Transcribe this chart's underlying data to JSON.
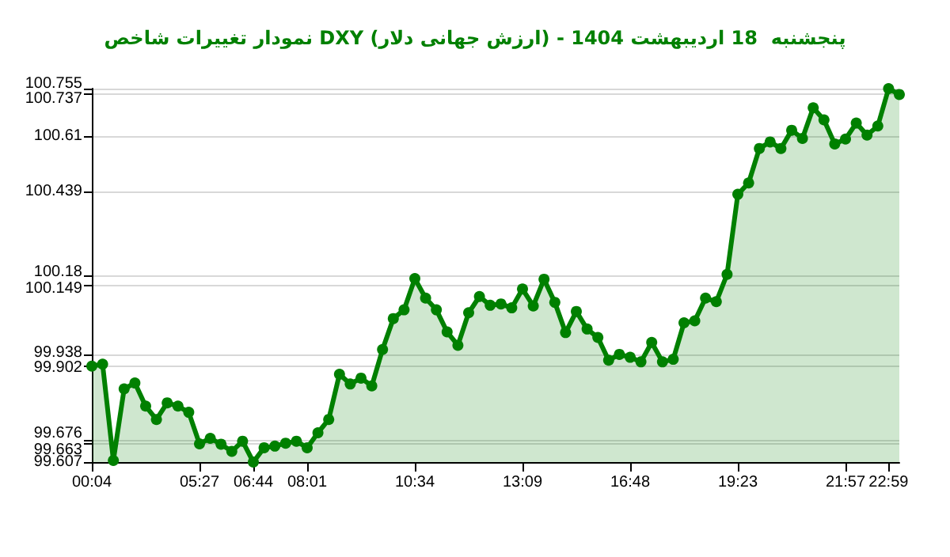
{
  "chart_data": {
    "type": "area",
    "title": "نمودار تغییرات شاخص DXY (ارزش جهانی دلار) - پنجشنبه  18 اردیبهشت 1404",
    "categories": [
      "00:04",
      null,
      null,
      null,
      null,
      null,
      null,
      null,
      null,
      null,
      "05:27",
      null,
      null,
      null,
      null,
      "06:44",
      null,
      null,
      null,
      null,
      "08:01",
      null,
      null,
      null,
      null,
      null,
      null,
      null,
      null,
      null,
      "10:34",
      null,
      null,
      null,
      null,
      null,
      null,
      null,
      null,
      null,
      "13:09",
      null,
      null,
      null,
      null,
      null,
      null,
      null,
      null,
      null,
      "16:48",
      null,
      null,
      null,
      null,
      null,
      null,
      null,
      null,
      null,
      "19:23",
      null,
      null,
      null,
      null,
      null,
      null,
      null,
      null,
      null,
      "21:57",
      null,
      null,
      null,
      "22:59",
      null
    ],
    "series": [
      {
        "color": "#008000",
        "values": [
          99.902,
          99.908,
          99.612,
          99.832,
          99.85,
          99.779,
          99.738,
          99.789,
          99.779,
          99.76,
          99.663,
          99.68,
          99.662,
          99.64,
          99.671,
          99.607,
          99.651,
          99.656,
          99.665,
          99.671,
          99.651,
          99.697,
          99.738,
          99.877,
          99.847,
          99.865,
          99.841,
          99.953,
          100.048,
          100.075,
          100.171,
          100.111,
          100.075,
          100.007,
          99.966,
          100.066,
          100.116,
          100.089,
          100.093,
          100.081,
          100.139,
          100.087,
          100.169,
          100.098,
          100.005,
          100.07,
          100.016,
          99.99,
          99.92,
          99.938,
          99.929,
          99.915,
          99.975,
          99.915,
          99.923,
          100.035,
          100.041,
          100.111,
          100.1,
          100.184,
          100.43,
          100.465,
          100.571,
          100.591,
          100.571,
          100.627,
          100.602,
          100.696,
          100.659,
          100.585,
          100.6,
          100.649,
          100.612,
          100.64,
          100.755,
          100.737
        ]
      }
    ],
    "ylim": [
      99.607,
      100.755
    ],
    "yticks": [
      99.607,
      99.663,
      99.676,
      99.902,
      99.938,
      100.149,
      100.18,
      100.439,
      100.61,
      100.737,
      100.755
    ],
    "grid": "y",
    "marker": "circle",
    "line_style": "solid"
  }
}
